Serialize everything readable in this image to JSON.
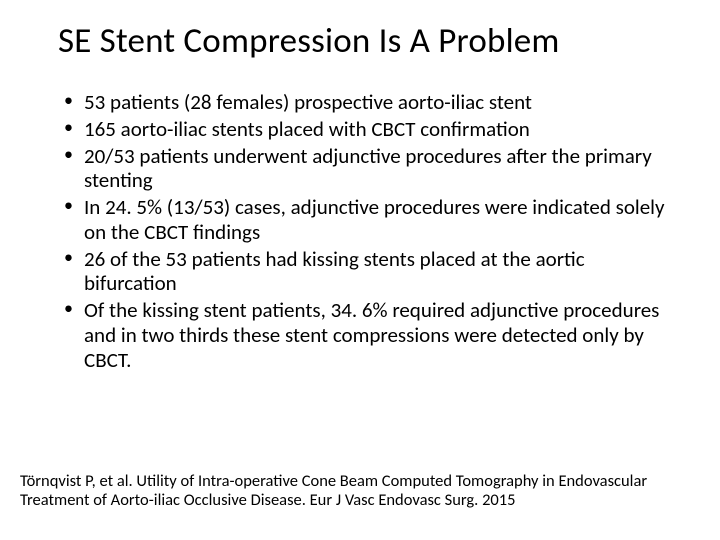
{
  "title": "SE Stent Compression Is A Problem",
  "bullets": [
    "53 patients (28 females) prospective aorto-iliac stent",
    "165 aorto-iliac stents placed with CBCT confirmation",
    "20/53 patients underwent adjunctive procedures after the primary stenting",
    "In 24. 5% (13/53) cases, adjunctive procedures were indicated solely on the CBCT findings",
    "26 of the 53 patients had kissing stents placed at the aortic bifurcation",
    "Of the kissing stent patients, 34. 6% required adjunctive procedures and in two thirds these stent compressions were detected only by CBCT."
  ],
  "citation": "Törnqvist P, et al. Utility of Intra-operative Cone Beam Computed Tomography in Endovascular Treatment of Aorto-iliac Occlusive Disease. Eur J Vasc Endovasc Surg. 2015",
  "colors": {
    "background": "#ffffff",
    "text": "#000000"
  },
  "typography": {
    "title_fontsize": 35,
    "body_fontsize": 21,
    "citation_fontsize": 16.5,
    "font_family": "Calibri"
  }
}
